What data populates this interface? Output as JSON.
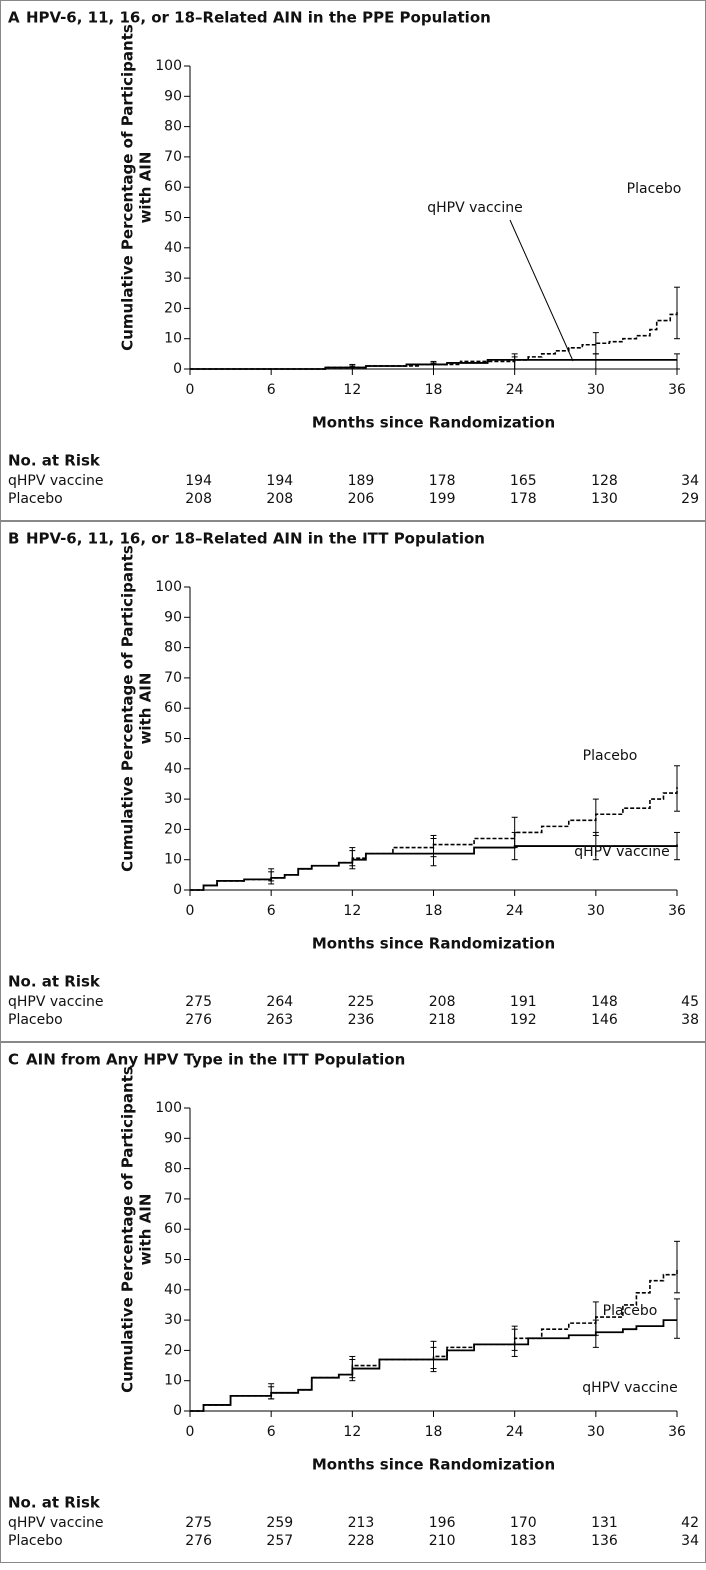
{
  "chart_data": [
    {
      "type": "line",
      "panel": "A",
      "title": "HPV-6, 11, 16, or 18–Related AIN in the PPE Population",
      "y_label": [
        "Cumulative Percentage of Participants",
        "with AIN"
      ],
      "x_label": "Months since Randomization",
      "xlim": [
        0,
        36
      ],
      "xticks": [
        0,
        6,
        12,
        18,
        24,
        30,
        36
      ],
      "ylim": [
        0,
        100
      ],
      "yticks": [
        0,
        10,
        20,
        30,
        40,
        50,
        60,
        70,
        80,
        90,
        100
      ],
      "series": [
        {
          "name": "qHPV vaccine",
          "color": "#000000",
          "style": "solid",
          "x": [
            0,
            10,
            13,
            16,
            19,
            22,
            36
          ],
          "values": [
            0,
            0.5,
            1,
            1.5,
            2,
            3,
            3
          ],
          "ci": [
            {
              "x": 12,
              "low": 0,
              "high": 1
            },
            {
              "x": 18,
              "low": 0,
              "high": 2
            },
            {
              "x": 24,
              "low": 0,
              "high": 4
            },
            {
              "x": 30,
              "low": 0,
              "high": 5
            },
            {
              "x": 36,
              "low": 0,
              "high": 5
            }
          ]
        },
        {
          "name": "Placebo",
          "color": "#000000",
          "style": "dashed",
          "x": [
            0,
            10,
            13,
            17,
            20,
            24,
            25,
            26,
            27,
            28,
            29,
            30,
            31,
            32,
            33,
            34,
            34.5,
            35.5,
            36
          ],
          "values": [
            0,
            0.5,
            1,
            1.5,
            2.5,
            3,
            4,
            5,
            6,
            7,
            8,
            8.5,
            9,
            10,
            11,
            13,
            16,
            18,
            19
          ],
          "ci": [
            {
              "x": 12,
              "low": 0,
              "high": 1.5
            },
            {
              "x": 18,
              "low": 0,
              "high": 2.5
            },
            {
              "x": 24,
              "low": 0,
              "high": 5
            },
            {
              "x": 30,
              "low": 5,
              "high": 12
            },
            {
              "x": 36,
              "low": 10,
              "high": 27
            }
          ]
        }
      ],
      "risk_table": {
        "title": "No. at Risk",
        "rows": [
          {
            "label": "qHPV vaccine",
            "values": [
              194,
              194,
              189,
              178,
              165,
              128,
              34
            ]
          },
          {
            "label": "Placebo",
            "values": [
              208,
              208,
              206,
              199,
              178,
              130,
              29
            ]
          }
        ]
      }
    },
    {
      "type": "line",
      "panel": "B",
      "title": "HPV-6, 11, 16, or 18–Related AIN in the ITT Population",
      "y_label": [
        "Cumulative Percentage of Participants",
        "with AIN"
      ],
      "x_label": "Months since Randomization",
      "xlim": [
        0,
        36
      ],
      "xticks": [
        0,
        6,
        12,
        18,
        24,
        30,
        36
      ],
      "ylim": [
        0,
        100
      ],
      "yticks": [
        0,
        10,
        20,
        30,
        40,
        50,
        60,
        70,
        80,
        90,
        100
      ],
      "series": [
        {
          "name": "qHPV vaccine",
          "color": "#000000",
          "style": "solid",
          "x": [
            0,
            1,
            2,
            4,
            6,
            7,
            8,
            9,
            11,
            12,
            13,
            19,
            21,
            24,
            36
          ],
          "values": [
            0,
            1.5,
            3,
            3.5,
            4,
            5,
            7,
            8,
            9,
            10,
            12,
            12,
            14,
            14.5,
            15
          ],
          "ci": [
            {
              "x": 6,
              "low": 2,
              "high": 6
            },
            {
              "x": 12,
              "low": 7,
              "high": 13
            },
            {
              "x": 18,
              "low": 8,
              "high": 17
            },
            {
              "x": 24,
              "low": 10,
              "high": 19
            },
            {
              "x": 30,
              "low": 10,
              "high": 19
            },
            {
              "x": 36,
              "low": 10,
              "high": 19
            }
          ]
        },
        {
          "name": "Placebo",
          "color": "#000000",
          "style": "dashed",
          "x": [
            0,
            1,
            2,
            4,
            6,
            7,
            8,
            9,
            11,
            12,
            13,
            15,
            18,
            21,
            24,
            26,
            28,
            30,
            32,
            34,
            35,
            36
          ],
          "values": [
            0,
            1.5,
            3,
            3.5,
            4,
            5,
            7,
            8,
            9,
            10.5,
            12,
            14,
            15,
            17,
            19,
            21,
            23,
            25,
            27,
            30,
            32,
            34
          ],
          "ci": [
            {
              "x": 6,
              "low": 3,
              "high": 7
            },
            {
              "x": 12,
              "low": 8,
              "high": 14
            },
            {
              "x": 18,
              "low": 11,
              "high": 18
            },
            {
              "x": 24,
              "low": 14,
              "high": 24
            },
            {
              "x": 30,
              "low": 18,
              "high": 30
            },
            {
              "x": 36,
              "low": 26,
              "high": 41
            }
          ]
        }
      ],
      "risk_table": {
        "title": "No. at Risk",
        "rows": [
          {
            "label": "qHPV vaccine",
            "values": [
              275,
              264,
              225,
              208,
              191,
              148,
              45
            ]
          },
          {
            "label": "Placebo",
            "values": [
              276,
              263,
              236,
              218,
              192,
              146,
              38
            ]
          }
        ]
      }
    },
    {
      "type": "line",
      "panel": "C",
      "title": "AIN from Any HPV Type in the ITT Population",
      "y_label": [
        "Cumulative Percentage of Participants",
        "with AIN"
      ],
      "x_label": "Months since Randomization",
      "xlim": [
        0,
        36
      ],
      "xticks": [
        0,
        6,
        12,
        18,
        24,
        30,
        36
      ],
      "ylim": [
        0,
        100
      ],
      "yticks": [
        0,
        10,
        20,
        30,
        40,
        50,
        60,
        70,
        80,
        90,
        100
      ],
      "series": [
        {
          "name": "qHPV vaccine",
          "color": "#000000",
          "style": "solid",
          "x": [
            0,
            1,
            3,
            6,
            8,
            9,
            11,
            12,
            14,
            18,
            19,
            21,
            25,
            28,
            30,
            32,
            33,
            35,
            36
          ],
          "values": [
            0,
            2,
            5,
            6,
            7,
            11,
            12,
            14,
            17,
            17,
            20,
            22,
            24,
            25,
            26,
            27,
            28,
            30,
            30
          ],
          "ci": [
            {
              "x": 6,
              "low": 4,
              "high": 8
            },
            {
              "x": 12,
              "low": 10,
              "high": 17
            },
            {
              "x": 18,
              "low": 13,
              "high": 21
            },
            {
              "x": 24,
              "low": 18,
              "high": 27
            },
            {
              "x": 30,
              "low": 21,
              "high": 30
            },
            {
              "x": 36,
              "low": 24,
              "high": 37
            }
          ]
        },
        {
          "name": "Placebo",
          "color": "#000000",
          "style": "dashed",
          "x": [
            0,
            1,
            3,
            6,
            8,
            9,
            11,
            12,
            14,
            18,
            19,
            21,
            24,
            26,
            28,
            30,
            32,
            33,
            34,
            35,
            36
          ],
          "values": [
            0,
            2,
            5,
            6,
            7,
            11,
            12,
            15,
            17,
            18,
            21,
            22,
            24,
            27,
            29,
            31,
            35,
            39,
            43,
            45,
            47
          ],
          "ci": [
            {
              "x": 6,
              "low": 4,
              "high": 9
            },
            {
              "x": 12,
              "low": 11,
              "high": 18
            },
            {
              "x": 18,
              "low": 14,
              "high": 23
            },
            {
              "x": 24,
              "low": 20,
              "high": 28
            },
            {
              "x": 30,
              "low": 25,
              "high": 36
            },
            {
              "x": 36,
              "low": 39,
              "high": 56
            }
          ]
        }
      ],
      "risk_table": {
        "title": "No. at Risk",
        "rows": [
          {
            "label": "qHPV vaccine",
            "values": [
              275,
              259,
              213,
              196,
              170,
              131,
              42
            ]
          },
          {
            "label": "Placebo",
            "values": [
              276,
              257,
              228,
              210,
              183,
              136,
              34
            ]
          }
        ]
      }
    }
  ]
}
